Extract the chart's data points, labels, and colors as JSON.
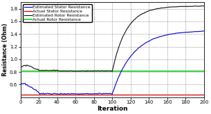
{
  "title": "",
  "xlabel": "Iteration",
  "ylabel": "Resistance (Ohm)",
  "xlim": [
    0,
    200
  ],
  "ylim": [
    0.4,
    1.9
  ],
  "yticks": [
    0.6,
    0.8,
    1.0,
    1.2,
    1.4,
    1.6,
    1.8
  ],
  "xticks": [
    0,
    20,
    40,
    60,
    80,
    100,
    120,
    140,
    160,
    180,
    200
  ],
  "legend_entries": [
    "Estimated Stator Resistance",
    "Actual Stator Resistance",
    "Estimated Rotor Resistance",
    "Actual Rotor Resistance"
  ],
  "colors": {
    "est_stator": "#0000cc",
    "act_stator": "#cc0000",
    "est_rotor": "#111111",
    "act_rotor": "#00cc00"
  },
  "act_stator_value": 0.445,
  "act_rotor_value": 0.808,
  "background": "#ffffff",
  "figsize": [
    3.05,
    1.65
  ],
  "dpi": 100
}
